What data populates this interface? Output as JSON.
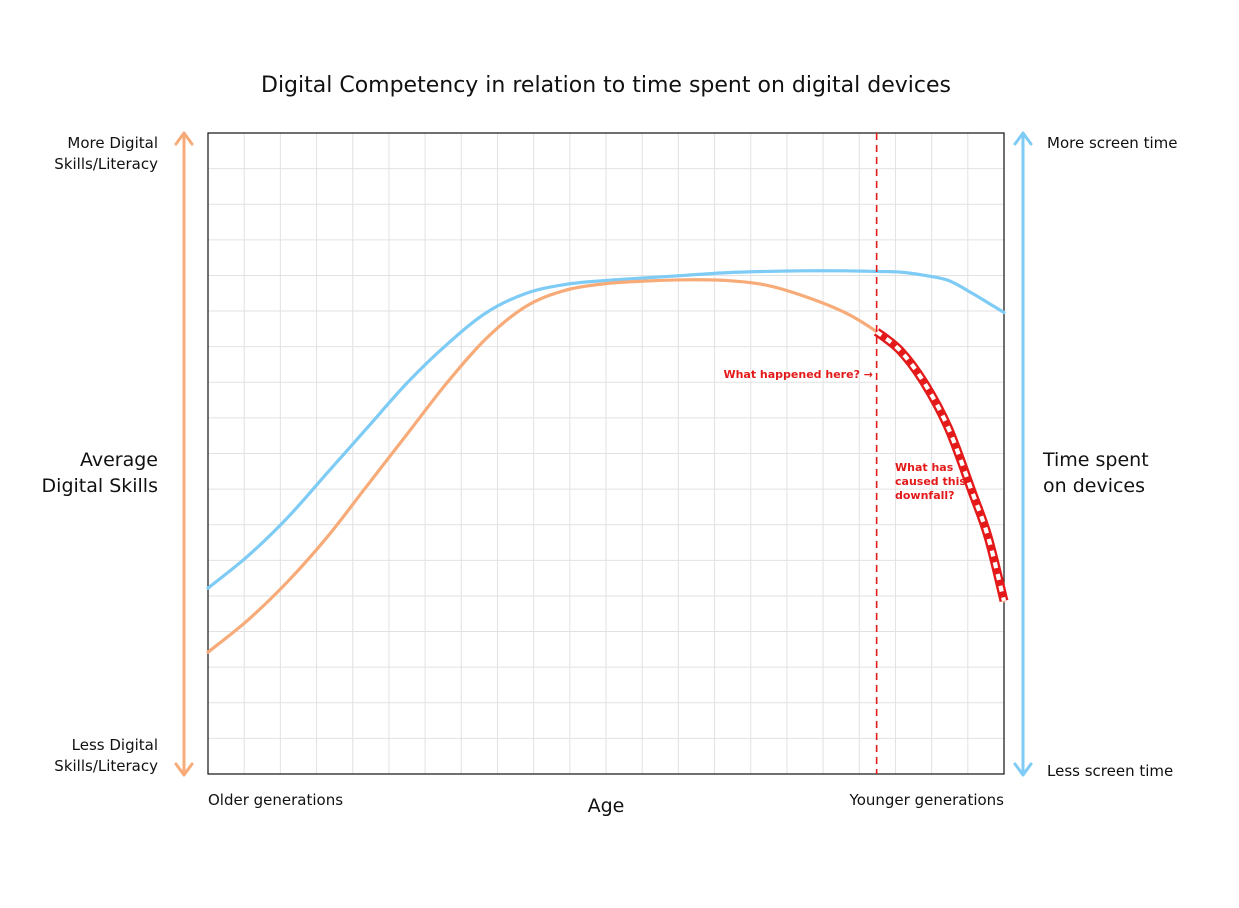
{
  "chart_data": {
    "type": "line",
    "title": "Digital Competency in relation to time spent on digital devices",
    "xlabel": "Age",
    "x_tick_labels": {
      "left": "Older generations",
      "right": "Younger generations"
    },
    "left_axis": {
      "label": [
        "Average",
        "Digital Skills"
      ],
      "top_label": [
        "More Digital",
        "Skills/Literacy"
      ],
      "bottom_label": [
        "Less Digital",
        "Skills/Literacy"
      ]
    },
    "right_axis": {
      "label": [
        "Time spent",
        "on devices"
      ],
      "top_label": "More screen time",
      "bottom_label": "Less screen time"
    },
    "x": [
      0,
      5,
      10,
      15,
      20,
      25,
      30,
      35,
      40,
      45,
      50,
      55,
      60,
      65,
      70,
      75,
      80,
      84,
      87,
      90,
      93,
      96,
      98,
      100
    ],
    "series": [
      {
        "key": "screen_time",
        "color": "#7ecbf5",
        "values": [
          29,
          34,
          40,
          47,
          54,
          61,
          67,
          72,
          75,
          76.4,
          77,
          77.4,
          77.8,
          78.2,
          78.4,
          78.5,
          78.5,
          78.4,
          78.3,
          77.8,
          77,
          75,
          73.5,
          72
        ]
      },
      {
        "key": "digital_skills",
        "color": "#f7ab78",
        "values": [
          19,
          24,
          30,
          37,
          45,
          53,
          61,
          68,
          73,
          75.5,
          76.5,
          76.9,
          77.1,
          77,
          76.3,
          74.5,
          72,
          69,
          66,
          61,
          54,
          44,
          37,
          27
        ]
      }
    ],
    "highlight": {
      "from_x": 84,
      "color": "#e41a1a"
    },
    "vline": {
      "x": 84,
      "color": "#e41a1a"
    },
    "xlim": [
      0,
      100
    ],
    "ylim": [
      0,
      100
    ],
    "grid": true,
    "annotations": [
      {
        "text": "What happened here? →"
      },
      {
        "lines": [
          "What has",
          "caused this",
          "downfall?"
        ]
      }
    ],
    "left_arrow_color": "#f7ab78",
    "right_arrow_color": "#7ecbf5"
  }
}
